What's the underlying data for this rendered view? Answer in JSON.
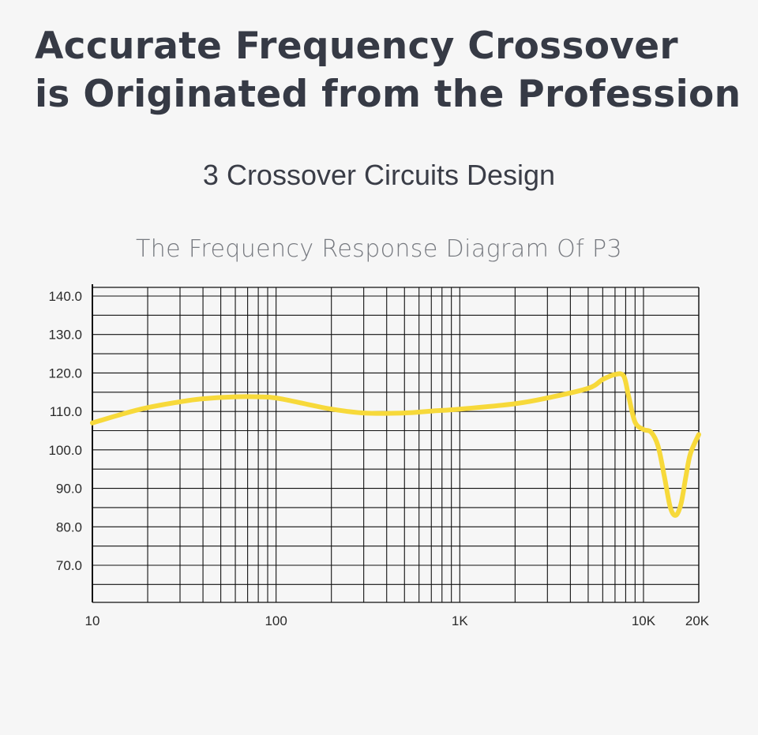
{
  "headline": {
    "line1": "Accurate Frequency Crossover",
    "line2": "is Originated from the Profession"
  },
  "subtitle": "3 Crossover Circuits Design",
  "colors": {
    "background": "#f6f6f6",
    "grid": "#111111",
    "curve": "#f7d93a",
    "headline": "#363a45"
  },
  "chart_data": {
    "type": "line",
    "title": "The Frequency Response Diagram Of P3",
    "xlabel": "",
    "ylabel": "",
    "xscale": "log",
    "xlim": [
      10,
      20000
    ],
    "ylim": [
      60,
      140
    ],
    "grid": true,
    "legend": "none",
    "y_ticks": [
      "140.0",
      "130.0",
      "120.0",
      "110.0",
      "100.0",
      "90.0",
      "80.0",
      "70.0"
    ],
    "x_ticks": [
      {
        "value": 10,
        "label": "10"
      },
      {
        "value": 100,
        "label": "100"
      },
      {
        "value": 1000,
        "label": "1K"
      },
      {
        "value": 10000,
        "label": "10K"
      },
      {
        "value": 20000,
        "label": "20K"
      }
    ],
    "series": [
      {
        "color": "#f7d93a",
        "x": [
          10,
          15,
          20,
          30,
          40,
          60,
          80,
          100,
          150,
          200,
          300,
          500,
          700,
          1000,
          2000,
          3000,
          5000,
          6000,
          7000,
          7800,
          8300,
          9000,
          10000,
          11000,
          12000,
          13000,
          14000,
          15000,
          16000,
          17000,
          18000,
          20000
        ],
        "y": [
          107,
          109.5,
          111,
          112.5,
          113.3,
          113.8,
          113.8,
          113.5,
          111.8,
          110.6,
          109.6,
          109.6,
          110.1,
          110.6,
          112,
          113.5,
          116,
          118.3,
          119.6,
          119.2,
          114,
          107.2,
          105.3,
          104.6,
          101,
          93,
          85,
          83,
          86,
          93,
          99,
          104
        ]
      }
    ]
  }
}
